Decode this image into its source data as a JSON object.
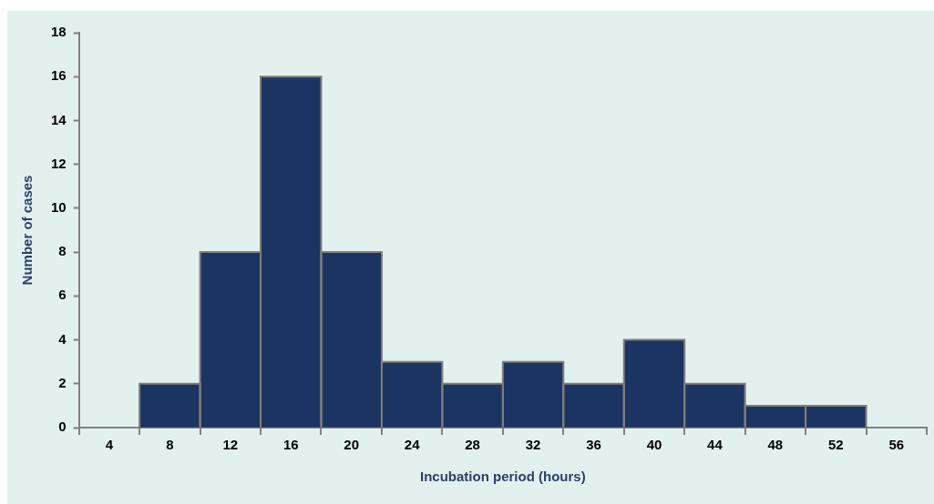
{
  "chart_data": {
    "type": "histogram",
    "xlabel": "Incubation period (hours)",
    "ylabel": "Number of cases",
    "bins": [
      6,
      10,
      14,
      18,
      22,
      26,
      30,
      34,
      38,
      42,
      46,
      50,
      54
    ],
    "values": [
      2,
      8,
      16,
      8,
      3,
      2,
      3,
      2,
      4,
      2,
      1,
      1
    ],
    "color": "#1c3461",
    "xlim": [
      2,
      58
    ],
    "xticks": [
      {
        "value": 2,
        "label": null
      },
      4,
      {
        "value": 6,
        "label": null
      },
      8,
      {
        "value": 10,
        "label": null
      },
      12,
      {
        "value": 14,
        "label": null
      },
      16,
      {
        "value": 18,
        "label": null
      },
      20,
      {
        "value": 22,
        "label": null
      },
      24,
      {
        "value": 26,
        "label": null
      },
      28,
      {
        "value": 30,
        "label": null
      },
      32,
      {
        "value": 34,
        "label": null
      },
      36,
      {
        "value": 38,
        "label": null
      },
      40,
      {
        "value": 42,
        "label": null
      },
      44,
      {
        "value": 46,
        "label": null
      },
      48,
      {
        "value": 50,
        "label": null
      },
      52,
      {
        "value": 54,
        "label": null
      },
      56,
      {
        "value": 58,
        "label": null
      }
    ],
    "ylim": [
      0,
      18
    ],
    "yticks": [
      0,
      2,
      4,
      6,
      8,
      10,
      12,
      14,
      16,
      18
    ],
    "grid": false,
    "legend": false
  }
}
